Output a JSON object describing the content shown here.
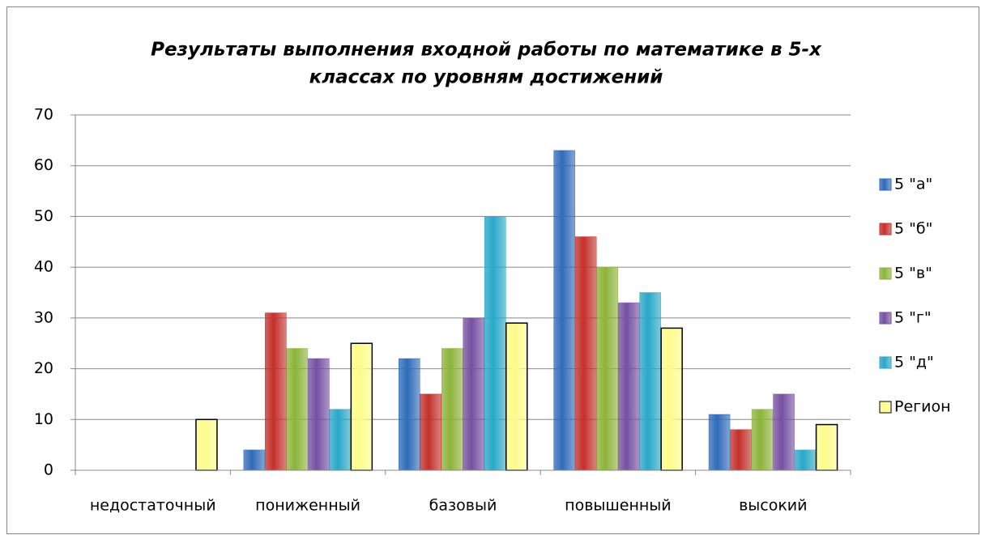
{
  "chart_data": {
    "type": "bar",
    "title": [
      "Результаты выполнения входной работы по математике  в 5-х",
      "классах по уровням достижений"
    ],
    "categories": [
      "недостаточный",
      "пониженный",
      "базовый",
      "повышенный",
      "высокий"
    ],
    "series": [
      {
        "name": "5 \"а\"",
        "color": "#2f6bb9",
        "values": [
          0,
          4,
          22,
          63,
          11
        ]
      },
      {
        "name": "5 \"б\"",
        "color": "#c3302b",
        "values": [
          0,
          31,
          15,
          46,
          8
        ]
      },
      {
        "name": "5 \"в\"",
        "color": "#8cb33a",
        "values": [
          0,
          24,
          24,
          40,
          12
        ]
      },
      {
        "name": "5 \"г\"",
        "color": "#7550a1",
        "values": [
          0,
          22,
          30,
          33,
          15
        ]
      },
      {
        "name": "5 \"д\"",
        "color": "#29a7c7",
        "values": [
          0,
          12,
          50,
          35,
          4
        ]
      },
      {
        "name": "Регион",
        "color": "#fcfc8a",
        "values": [
          10,
          25,
          29,
          28,
          9
        ]
      }
    ],
    "ylim": [
      0,
      70
    ],
    "yticks": [
      0,
      10,
      20,
      30,
      40,
      50,
      60,
      70
    ],
    "grid": true,
    "legend": "right"
  }
}
